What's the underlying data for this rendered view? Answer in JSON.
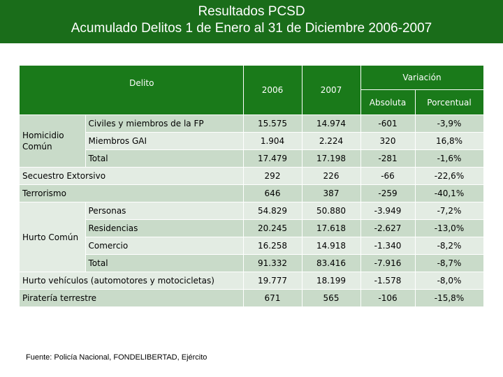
{
  "title": {
    "line1": "Resultados PCSD",
    "line2": "Acumulado Delitos 1 de Enero al 31 de Diciembre 2006-2007"
  },
  "header": {
    "delito": "Delito",
    "y2006": "2006",
    "y2007": "2007",
    "variacion": "Variación",
    "absoluta": "Absoluta",
    "porcentual": "Porcentual"
  },
  "groups": {
    "homicidio": "Homicidio Común",
    "hurto": "Hurto Común"
  },
  "rows": [
    {
      "label": "Civiles y miembros de la FP",
      "v2006": "15.575",
      "v2007": "14.974",
      "abs": "-601",
      "pct": "-3,9%"
    },
    {
      "label": "Miembros GAI",
      "v2006": "1.904",
      "v2007": "2.224",
      "abs": "320",
      "pct": "16,8%"
    },
    {
      "label": "Total",
      "v2006": "17.479",
      "v2007": "17.198",
      "abs": "-281",
      "pct": "-1,6%"
    },
    {
      "label": "Secuestro Extorsivo",
      "v2006": "292",
      "v2007": "226",
      "abs": "-66",
      "pct": "-22,6%"
    },
    {
      "label": "Terrorismo",
      "v2006": "646",
      "v2007": "387",
      "abs": "-259",
      "pct": "-40,1%"
    },
    {
      "label": "Personas",
      "v2006": "54.829",
      "v2007": "50.880",
      "abs": "-3.949",
      "pct": "-7,2%"
    },
    {
      "label": "Residencias",
      "v2006": "20.245",
      "v2007": "17.618",
      "abs": "-2.627",
      "pct": "-13,0%"
    },
    {
      "label": "Comercio",
      "v2006": "16.258",
      "v2007": "14.918",
      "abs": "-1.340",
      "pct": "-8,2%"
    },
    {
      "label": "Total",
      "v2006": "91.332",
      "v2007": "83.416",
      "abs": "-7.916",
      "pct": "-8,7%"
    },
    {
      "label": "Hurto vehículos (automotores y motocicletas)",
      "v2006": "19.777",
      "v2007": "18.199",
      "abs": "-1.578",
      "pct": "-8,0%"
    },
    {
      "label": "Piratería terrestre",
      "v2006": "671",
      "v2007": "565",
      "abs": "-106",
      "pct": "-15,8%"
    }
  ],
  "source": "Fuente: Policía Nacional, FONDELIBERTAD, Ejército",
  "colors": {
    "header_green": "#1a7a1a",
    "title_green": "#1a6d1a",
    "row_dark": "#c9dbc9",
    "row_light": "#e3ece3"
  }
}
